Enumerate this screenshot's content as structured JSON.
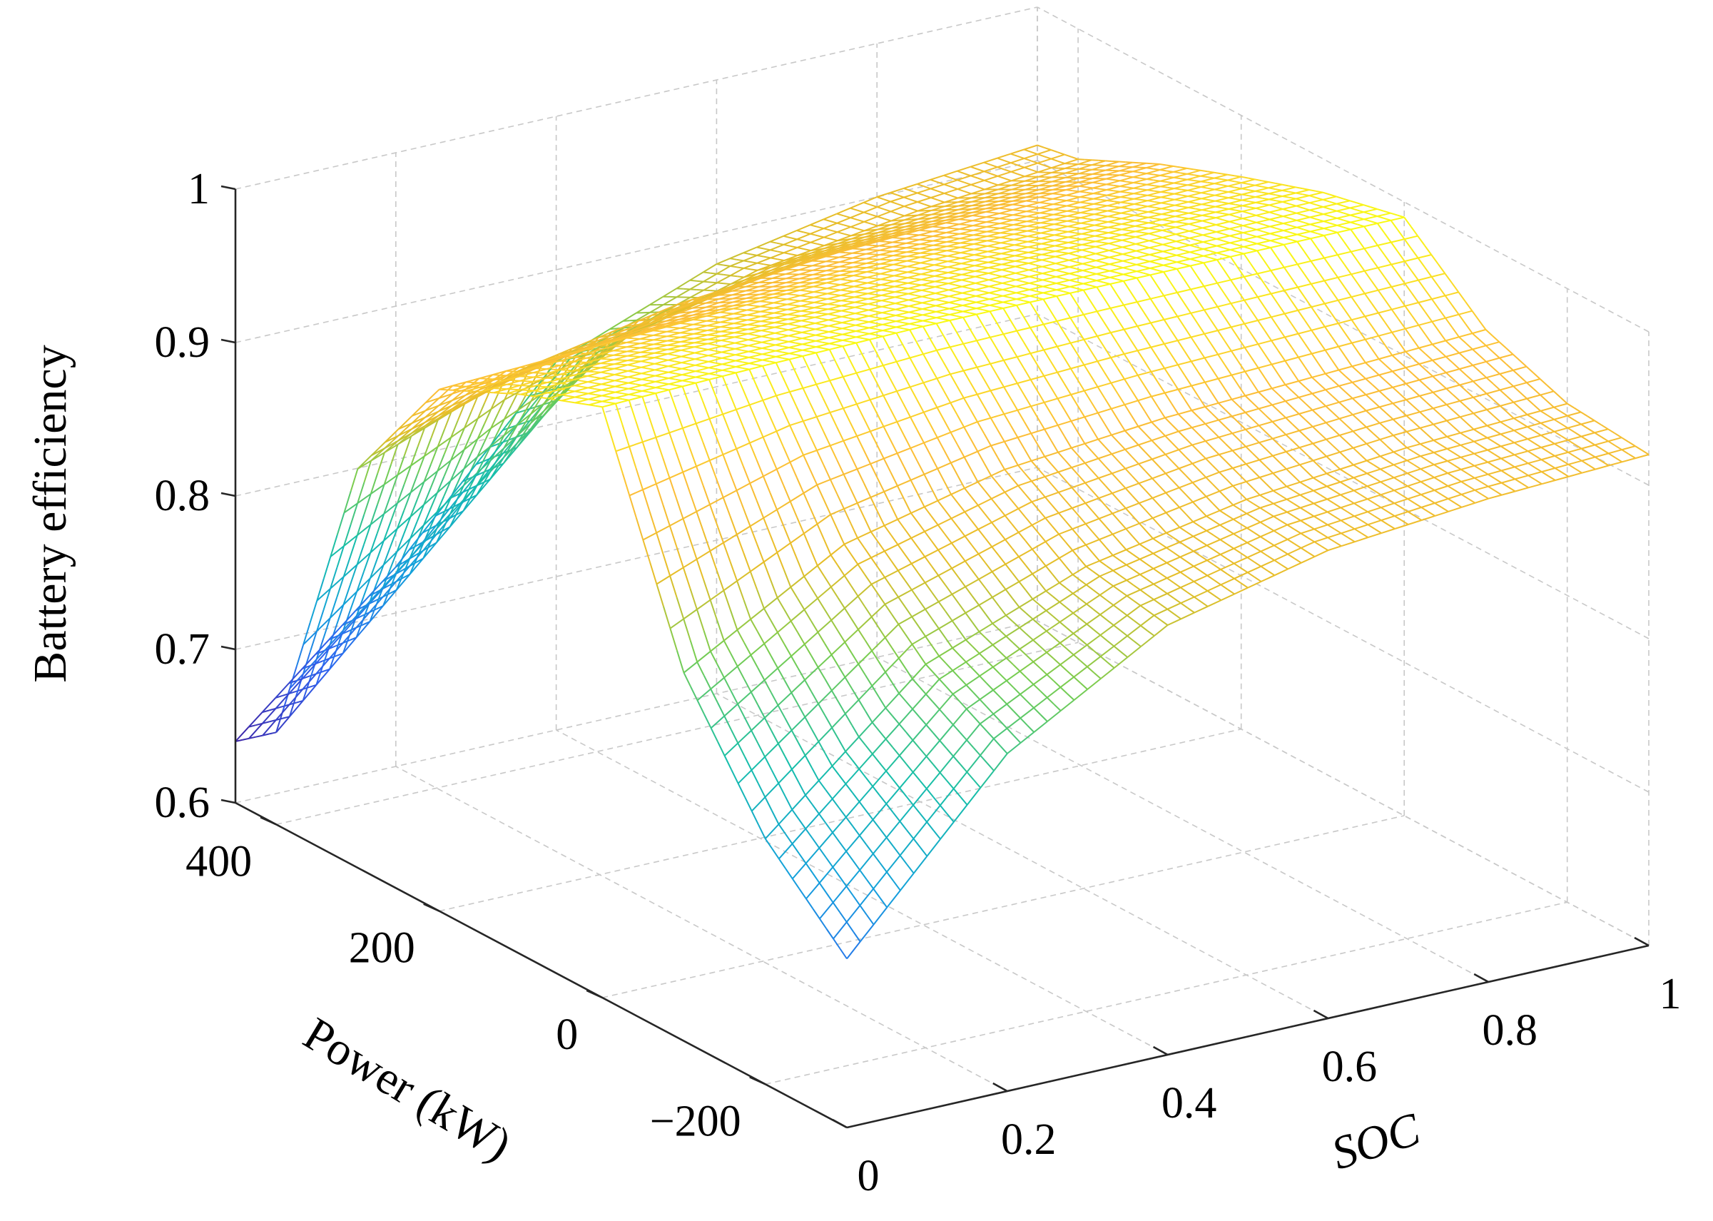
{
  "chart_data": {
    "type": "surface",
    "title": "",
    "xlabel": "SOC",
    "ylabel": "Power (kW)",
    "zlabel": "Battery efficiency",
    "xlim": [
      0,
      1
    ],
    "ylim": [
      -300,
      450
    ],
    "zlim": [
      0.6,
      1.0
    ],
    "x_ticks": [
      0,
      0.2,
      0.4,
      0.6,
      0.8,
      1
    ],
    "x_tick_labels": [
      "0",
      "0.2",
      "0.4",
      "0.6",
      "0.8",
      "1"
    ],
    "y_ticks": [
      -200,
      0,
      200,
      400
    ],
    "y_tick_labels": [
      "−200",
      "0",
      "200",
      "400"
    ],
    "z_ticks": [
      0.6,
      0.7,
      0.8,
      0.9,
      1.0
    ],
    "z_tick_labels": [
      "0.6",
      "0.7",
      "0.8",
      "0.9",
      "1"
    ],
    "grid": true,
    "colormap": "parula",
    "surface_rows": [
      {
        "power": -300,
        "efficiency": [
          0.71,
          0.82,
          0.88,
          0.905,
          0.915,
          0.92
        ]
      },
      {
        "power": -200,
        "efficiency": [
          0.76,
          0.85,
          0.89,
          0.91,
          0.92,
          0.925
        ]
      },
      {
        "power": -100,
        "efficiency": [
          0.84,
          0.9,
          0.925,
          0.935,
          0.94,
          0.945
        ]
      },
      {
        "power": 0,
        "efficiency": [
          0.985,
          0.988,
          0.99,
          0.99,
          0.99,
          0.99
        ]
      },
      {
        "power": 100,
        "efficiency": [
          0.965,
          0.97,
          0.972,
          0.975,
          0.977,
          0.978
        ]
      },
      {
        "power": 200,
        "efficiency": [
          0.94,
          0.945,
          0.95,
          0.955,
          0.957,
          0.96
        ]
      },
      {
        "power": 300,
        "efficiency": [
          0.86,
          0.9,
          0.92,
          0.93,
          0.935,
          0.94
        ]
      },
      {
        "power": 400,
        "efficiency": [
          0.66,
          0.76,
          0.86,
          0.89,
          0.905,
          0.915
        ]
      },
      {
        "power": 450,
        "efficiency": [
          0.64,
          0.73,
          0.84,
          0.88,
          0.9,
          0.91
        ]
      }
    ],
    "surface_soc": [
      0,
      0.2,
      0.4,
      0.6,
      0.8,
      1.0
    ]
  }
}
